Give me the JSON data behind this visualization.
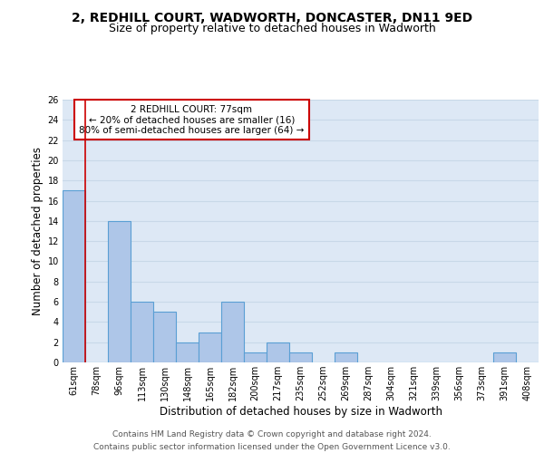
{
  "title": "2, REDHILL COURT, WADWORTH, DONCASTER, DN11 9ED",
  "subtitle": "Size of property relative to detached houses in Wadworth",
  "xlabel": "Distribution of detached houses by size in Wadworth",
  "ylabel": "Number of detached properties",
  "footer_line1": "Contains HM Land Registry data © Crown copyright and database right 2024.",
  "footer_line2": "Contains public sector information licensed under the Open Government Licence v3.0.",
  "categories": [
    "61sqm",
    "78sqm",
    "96sqm",
    "113sqm",
    "130sqm",
    "148sqm",
    "165sqm",
    "182sqm",
    "200sqm",
    "217sqm",
    "235sqm",
    "252sqm",
    "269sqm",
    "287sqm",
    "304sqm",
    "321sqm",
    "339sqm",
    "356sqm",
    "373sqm",
    "391sqm",
    "408sqm"
  ],
  "values": [
    17,
    0,
    14,
    6,
    5,
    2,
    3,
    6,
    1,
    2,
    1,
    0,
    1,
    0,
    0,
    0,
    0,
    0,
    0,
    1,
    0
  ],
  "bar_color": "#aec6e8",
  "bar_edge_color": "#5a9fd4",
  "vline_color": "#cc0000",
  "annotation_text": "2 REDHILL COURT: 77sqm\n← 20% of detached houses are smaller (16)\n80% of semi-detached houses are larger (64) →",
  "annotation_box_color": "#ffffff",
  "annotation_box_edge": "#cc0000",
  "ylim": [
    0,
    26
  ],
  "yticks": [
    0,
    2,
    4,
    6,
    8,
    10,
    12,
    14,
    16,
    18,
    20,
    22,
    24,
    26
  ],
  "grid_color": "#c8d8e8",
  "bg_color": "#dde8f5",
  "title_fontsize": 10,
  "subtitle_fontsize": 9,
  "tick_fontsize": 7,
  "ylabel_fontsize": 8.5,
  "xlabel_fontsize": 8.5,
  "footer_fontsize": 6.5
}
